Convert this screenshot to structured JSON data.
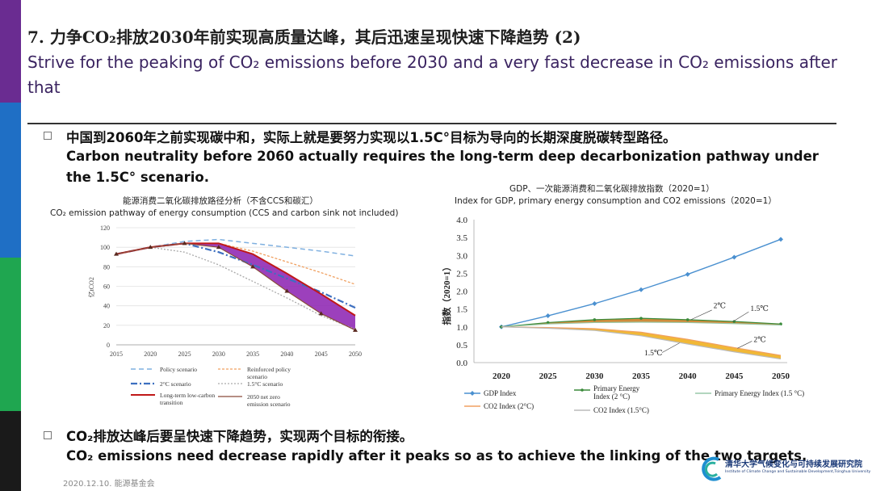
{
  "header": {
    "title_cn": "7. 力争CO₂排放2030年前实现高质量达峰，其后迅速呈现快速下降趋势 (2)",
    "title_en": "Strive for the peaking of CO₂ emissions before 2030 and a very fast decrease in CO₂ emissions after that"
  },
  "bullets": [
    {
      "cn": "中国到2060年之前实现碳中和，实际上就是要努力实现以1.5C°目标为导向的长期深度脱碳转型路径。",
      "en": "Carbon neutrality before 2060 actually requires the long-term deep decarbonization pathway under the 1.5C° scenario."
    },
    {
      "cn": "CO₂排放达峰后要呈快速下降趋势，实现两个目标的衔接。",
      "en": "CO₂ emissions need decrease rapidly after it peaks so as to achieve the linking of the two targets."
    }
  ],
  "footer": {
    "date": "2020.12.10.  能源基金会"
  },
  "logo": {
    "cn": "清华大学气候变化与可持续发展研究院",
    "en": "Institute of Climate Change and Sustainable Development,Tsinghua University"
  },
  "colors": {
    "sidebar": [
      "#6a2c91",
      "#1f6fc5",
      "#1fa650",
      "#1a1a1a"
    ],
    "accent": "#7a1fa0"
  },
  "chart_data": [
    {
      "type": "line",
      "title": "能源消费二氧化碳排放路径分析（不含CCS和碳汇）",
      "subtitle": "CO₂ emission pathway of energy consumption (CCS and carbon sink not included)",
      "ylabel": "亿tCO2",
      "x": [
        2015,
        2020,
        2025,
        2030,
        2035,
        2040,
        2045,
        2050
      ],
      "xticks": [
        "2015",
        "2020",
        "2025",
        "2030",
        "2035",
        "2040",
        "2045",
        "2050"
      ],
      "yticks": [
        "0",
        "10",
        "20",
        "30",
        "40",
        "50",
        "60",
        "70",
        "80",
        "90",
        "100",
        "110",
        "120"
      ],
      "ylim": [
        0,
        120
      ],
      "series": [
        {
          "name": "Policy scenario",
          "values": [
            93,
            100,
            106,
            108,
            104,
            100,
            96,
            91
          ]
        },
        {
          "name": "Reinforced policy scenario",
          "values": [
            93,
            100,
            104,
            104,
            96,
            85,
            74,
            62
          ]
        },
        {
          "name": "2°C scenario",
          "values": [
            93,
            100,
            104,
            95,
            82,
            68,
            54,
            38
          ]
        },
        {
          "name": "1.5°C scenario",
          "values": [
            93,
            100,
            95,
            82,
            65,
            48,
            30,
            16
          ]
        },
        {
          "name": "Long-term low-carbon transition",
          "values": [
            93,
            100,
            104,
            104,
            93,
            73,
            52,
            30
          ]
        },
        {
          "name": "2050 net zero emission scenario",
          "values": [
            93,
            100,
            104,
            100,
            80,
            55,
            32,
            15
          ]
        }
      ],
      "legend_position": "bottom"
    },
    {
      "type": "line",
      "title": "GDP、一次能源消费和二氧化碳排放指数（2020=1）",
      "subtitle": "Index for GDP, primary energy consumption and CO2 emissions（2020=1）",
      "ylabel": "指数（2020=1）",
      "x": [
        2020,
        2025,
        2030,
        2035,
        2040,
        2045,
        2050
      ],
      "xticks": [
        "2020",
        "2025",
        "2030",
        "2035",
        "2040",
        "2045",
        "2050"
      ],
      "yticks": [
        "0.0",
        "0.5",
        "1.0",
        "1.5",
        "2.0",
        "2.5",
        "3.0",
        "3.5",
        "4.0"
      ],
      "ylim": [
        0,
        4
      ],
      "series": [
        {
          "name": "GDP Index",
          "values": [
            1.0,
            1.31,
            1.65,
            2.04,
            2.47,
            2.95,
            3.45
          ]
        },
        {
          "name": "Primary Energy Index (2 °C)",
          "values": [
            1.0,
            1.12,
            1.2,
            1.24,
            1.2,
            1.15,
            1.08
          ]
        },
        {
          "name": "Primary Energy Index (1.5 °C)",
          "values": [
            1.0,
            1.08,
            1.12,
            1.13,
            1.12,
            1.09,
            1.05
          ]
        },
        {
          "name": "CO2 Index (2°C)",
          "values": [
            1.0,
            0.98,
            0.95,
            0.85,
            0.65,
            0.42,
            0.2
          ]
        },
        {
          "name": "CO2 Index (1.5°C)",
          "values": [
            1.0,
            0.96,
            0.9,
            0.75,
            0.52,
            0.3,
            0.1
          ]
        }
      ],
      "annotations": [
        "2℃",
        "1.5℃",
        "2℃",
        "1.5℃"
      ],
      "legend_position": "bottom"
    }
  ]
}
